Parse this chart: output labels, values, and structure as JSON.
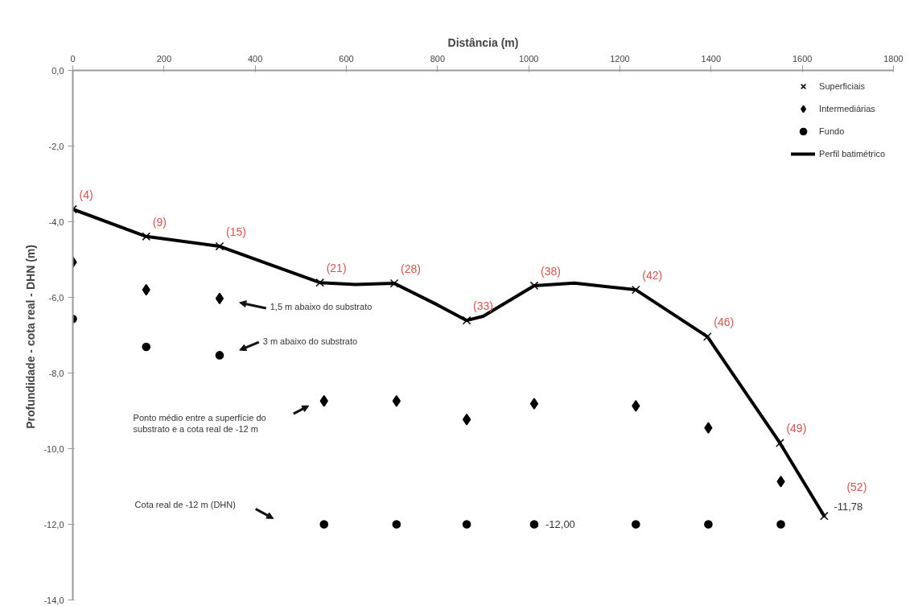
{
  "chart_data": {
    "type": "scatter",
    "xlabel": "Distância (m)",
    "ylabel": "Profundidade - cota real - DHN  (m)",
    "xlim": [
      0,
      1800
    ],
    "xticks": [
      0,
      200,
      400,
      600,
      800,
      1000,
      1200,
      1400,
      1600,
      1800
    ],
    "ylim": [
      -14,
      0
    ],
    "yticks": [
      {
        "value": 0,
        "label": "0,0"
      },
      {
        "value": -2,
        "label": "-2,0"
      },
      {
        "value": -4,
        "label": "-4,0"
      },
      {
        "value": -6,
        "label": "-6,0"
      },
      {
        "value": -8,
        "label": "-8,0"
      },
      {
        "value": -10,
        "label": "-10,0"
      },
      {
        "value": -12,
        "label": "-12,0"
      },
      {
        "value": -14,
        "label": "-14,0"
      }
    ],
    "legend": "top right",
    "series": [
      {
        "name": "Superficiais",
        "marker": "cross",
        "color": "#111111",
        "x": [
          0,
          161,
          322,
          542,
          705,
          864,
          1012,
          1235,
          1392,
          1551,
          1648
        ],
        "values": [
          -3.67,
          -4.39,
          -4.65,
          -5.61,
          -5.63,
          -6.61,
          -5.69,
          -5.8,
          -7.04,
          -9.85,
          -11.78
        ]
      },
      {
        "name": "Intermediárias",
        "marker": "diamond",
        "color": "#000000",
        "x": [
          0,
          161,
          322,
          551,
          710,
          864,
          1012,
          1235,
          1394,
          1553
        ],
        "values": [
          -5.07,
          -5.8,
          -6.03,
          -8.74,
          -8.74,
          -9.23,
          -8.81,
          -8.87,
          -9.45,
          -10.87
        ]
      },
      {
        "name": "Fundo",
        "marker": "circle",
        "color": "#000000",
        "x": [
          0,
          161,
          322,
          551,
          710,
          864,
          1012,
          1235,
          1394,
          1553
        ],
        "values": [
          -6.57,
          -7.31,
          -7.53,
          -12.0,
          -12.0,
          -12.0,
          -12.0,
          -12.0,
          -12.0,
          -12.0
        ]
      },
      {
        "name": "Perfil batimétrico",
        "type": "line",
        "color": "#000000",
        "x": [
          0,
          161,
          322,
          542,
          620,
          705,
          800,
          864,
          900,
          1012,
          1100,
          1235,
          1392,
          1551,
          1648
        ],
        "values": [
          -3.67,
          -4.39,
          -4.65,
          -5.61,
          -5.66,
          -5.63,
          -6.2,
          -6.61,
          -6.5,
          -5.69,
          -5.62,
          -5.8,
          -7.04,
          -9.85,
          -11.78
        ]
      }
    ],
    "annotations": [
      {
        "text": "(4)",
        "x": 0,
        "y": -3.67
      },
      {
        "text": "(9)",
        "x": 161,
        "y": -4.39
      },
      {
        "text": "(15)",
        "x": 322,
        "y": -4.65
      },
      {
        "text": "(21)",
        "x": 542,
        "y": -5.61
      },
      {
        "text": "(28)",
        "x": 705,
        "y": -5.63
      },
      {
        "text": "(33)",
        "x": 864,
        "y": -6.61
      },
      {
        "text": "(38)",
        "x": 1012,
        "y": -5.69
      },
      {
        "text": "(42)",
        "x": 1235,
        "y": -5.8
      },
      {
        "text": "(46)",
        "x": 1392,
        "y": -7.04
      },
      {
        "text": "(49)",
        "x": 1551,
        "y": -9.85
      },
      {
        "text": "(52)",
        "x": 1648,
        "y": -11.78
      },
      {
        "text": "-12,00",
        "x": 1012,
        "y": -12.0
      },
      {
        "text": "-11,78",
        "x": 1648,
        "y": -11.78
      },
      "1,5 m abaixo do substrato",
      "3 m abaixo do substrato",
      "Ponto médio entre a superfície do\nsubstrato e a cota real de -12 m",
      "Cota real de -12 m (DHN)"
    ]
  }
}
